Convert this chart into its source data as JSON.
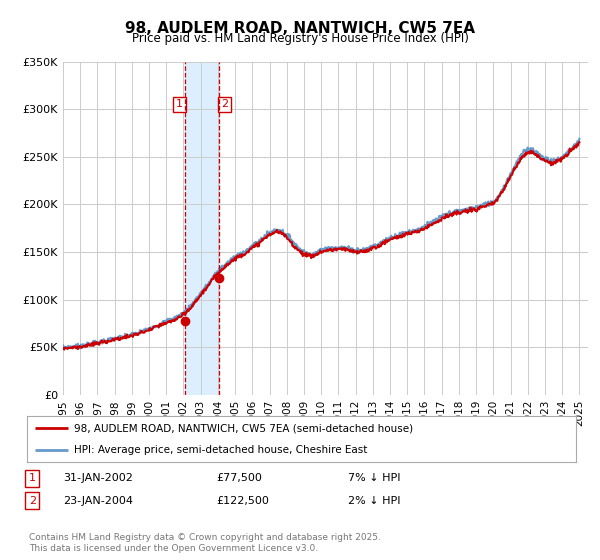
{
  "title": "98, AUDLEM ROAD, NANTWICH, CW5 7EA",
  "subtitle": "Price paid vs. HM Land Registry's House Price Index (HPI)",
  "legend_line1": "98, AUDLEM ROAD, NANTWICH, CW5 7EA (semi-detached house)",
  "legend_line2": "HPI: Average price, semi-detached house, Cheshire East",
  "footnote": "Contains HM Land Registry data © Crown copyright and database right 2025.\nThis data is licensed under the Open Government Licence v3.0.",
  "sale1_date": "31-JAN-2002",
  "sale1_price": "£77,500",
  "sale1_hpi": "7% ↓ HPI",
  "sale2_date": "23-JAN-2004",
  "sale2_price": "£122,500",
  "sale2_hpi": "2% ↓ HPI",
  "sale1_year": 2002.08,
  "sale1_value": 77500,
  "sale2_year": 2004.07,
  "sale2_value": 122500,
  "vline1_x": 2002.08,
  "vline2_x": 2004.07,
  "shade_x1": 2002.08,
  "shade_x2": 2004.07,
  "xmin": 1995,
  "xmax": 2025.5,
  "ymin": 0,
  "ymax": 350000,
  "red_color": "#cc0000",
  "blue_color": "#6699cc",
  "background_color": "#ffffff",
  "grid_color": "#cccccc",
  "shade_color": "#ddeeff",
  "yticks": [
    0,
    50000,
    100000,
    150000,
    200000,
    250000,
    300000,
    350000
  ],
  "ytick_labels": [
    "£0",
    "£50K",
    "£100K",
    "£150K",
    "£200K",
    "£250K",
    "£300K",
    "£350K"
  ],
  "hpi_years": [
    1995,
    1995.5,
    1996,
    1996.5,
    1997,
    1997.5,
    1998,
    1998.5,
    1999,
    1999.5,
    2000,
    2000.5,
    2001,
    2001.5,
    2002,
    2002.5,
    2003,
    2003.5,
    2004,
    2004.5,
    2005,
    2005.5,
    2006,
    2006.5,
    2007,
    2007.5,
    2008,
    2008.5,
    2009,
    2009.5,
    2010,
    2010.5,
    2011,
    2011.5,
    2012,
    2012.5,
    2013,
    2013.5,
    2014,
    2014.5,
    2015,
    2015.5,
    2016,
    2016.5,
    2017,
    2017.5,
    2018,
    2018.5,
    2019,
    2019.5,
    2020,
    2020.5,
    2021,
    2021.5,
    2022,
    2022.5,
    2023,
    2023.5,
    2024,
    2024.5,
    2025
  ],
  "hpi_values": [
    50000,
    50500,
    51500,
    53000,
    55000,
    57000,
    59000,
    61000,
    63000,
    66000,
    70000,
    73000,
    77000,
    81000,
    86000,
    95000,
    107000,
    118000,
    130000,
    138000,
    145000,
    150000,
    156000,
    163000,
    170000,
    173000,
    168000,
    158000,
    150000,
    148000,
    152000,
    154000,
    155000,
    154000,
    152000,
    153000,
    156000,
    160000,
    165000,
    168000,
    171000,
    173000,
    177000,
    182000,
    187000,
    191000,
    193000,
    195000,
    197000,
    200000,
    203000,
    215000,
    232000,
    248000,
    258000,
    255000,
    248000,
    246000,
    250000,
    258000,
    268000
  ],
  "red_years": [
    1995,
    1995.5,
    1996,
    1996.5,
    1997,
    1997.5,
    1998,
    1998.5,
    1999,
    1999.5,
    2000,
    2000.5,
    2001,
    2001.5,
    2002,
    2002.5,
    2003,
    2003.5,
    2004,
    2004.5,
    2005,
    2005.5,
    2006,
    2006.5,
    2007,
    2007.5,
    2008,
    2008.5,
    2009,
    2009.5,
    2010,
    2010.5,
    2011,
    2011.5,
    2012,
    2012.5,
    2013,
    2013.5,
    2014,
    2014.5,
    2015,
    2015.5,
    2016,
    2016.5,
    2017,
    2017.5,
    2018,
    2018.5,
    2019,
    2019.5,
    2020,
    2020.5,
    2021,
    2021.5,
    2022,
    2022.5,
    2023,
    2023.5,
    2024,
    2024.5,
    2025
  ],
  "red_values": [
    49000,
    49500,
    50500,
    52000,
    54000,
    56000,
    58000,
    60000,
    62000,
    65000,
    68000,
    72000,
    75000,
    79000,
    84000,
    93000,
    105000,
    116000,
    128000,
    136000,
    143000,
    148000,
    154000,
    161000,
    168000,
    171000,
    165000,
    155000,
    148000,
    146000,
    150000,
    152000,
    153000,
    152000,
    150000,
    151000,
    154000,
    158000,
    163000,
    166000,
    169000,
    171000,
    175000,
    180000,
    185000,
    189000,
    191000,
    193000,
    195000,
    198000,
    201000,
    213000,
    229000,
    245000,
    255000,
    252000,
    246000,
    244000,
    248000,
    256000,
    265000
  ]
}
